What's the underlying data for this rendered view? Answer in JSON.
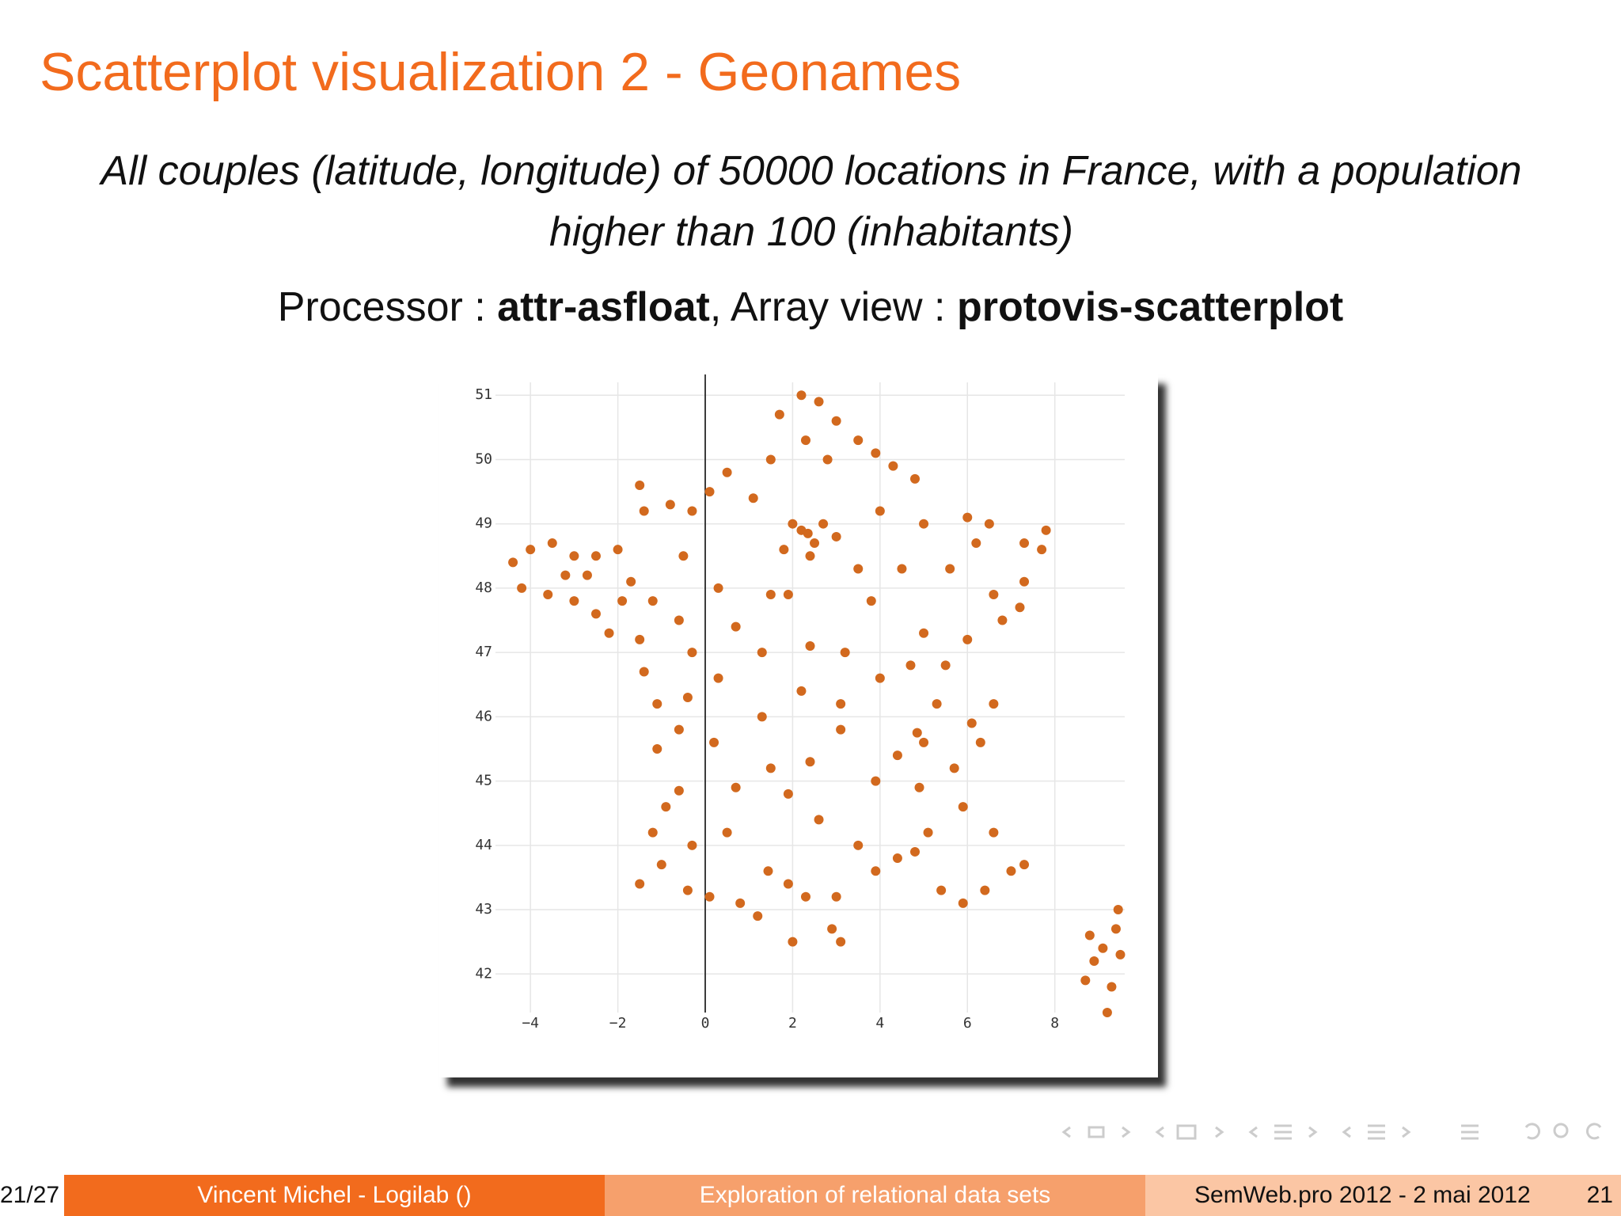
{
  "slide": {
    "title": "Scatterplot visualization 2 - Geonames",
    "subtitle": "All couples (latitude, longitude) of 50000 locations in France, with a population higher than 100 (inhabitants)",
    "processor_label": "Processor : ",
    "processor": "attr-asfloat",
    "view_label": ", Array view : ",
    "view": "protovis-scatterplot",
    "footer": {
      "page_count": "21/27",
      "author": "Vincent Michel - Logilab  ()",
      "talk": "Exploration of relational data sets",
      "event": "SemWeb.pro 2012 - 2 mai 2012",
      "page": "21"
    }
  },
  "chart_data": {
    "type": "scatter",
    "color": "#d2691e",
    "grid": true,
    "xlim": [
      -4.8,
      9.6
    ],
    "ylim": [
      41.4,
      51.2
    ],
    "xticks": [
      {
        "value": -4,
        "label": "−4"
      },
      {
        "value": -2,
        "label": "−2"
      },
      0,
      2,
      4,
      6,
      8
    ],
    "yticks": [
      42,
      43,
      44,
      45,
      46,
      47,
      48,
      49,
      50,
      51
    ],
    "x": [
      -4.4,
      -4.0,
      -3.5,
      -3.0,
      -2.5,
      -2.0,
      -4.2,
      -3.6,
      -3.0,
      -2.5,
      -2.2,
      -1.7,
      -1.5,
      -1.2,
      -1.5,
      -1.4,
      -0.8,
      -0.3,
      0.1,
      0.5,
      1.1,
      1.5,
      1.7,
      2.2,
      2.6,
      3.0,
      3.5,
      3.9,
      2.3,
      2.8,
      4.3,
      4.8,
      2.35,
      2.2,
      2.5,
      2.0,
      2.7,
      2.4,
      3.0,
      1.8,
      4.0,
      5.0,
      6.0,
      6.5,
      7.3,
      7.7,
      7.8,
      7.3,
      7.2,
      6.2,
      5.6,
      6.6,
      4.5,
      3.8,
      5.0,
      6.0,
      6.8,
      5.5,
      1.5,
      0.7,
      1.9,
      1.3,
      2.4,
      3.2,
      0.3,
      1.3,
      2.2,
      3.1,
      3.1,
      2.4,
      1.5,
      0.2,
      3.9,
      2.6,
      -0.6,
      -0.3,
      -1.1,
      -1.4,
      -0.4,
      -0.6,
      -1.1,
      -0.6,
      -0.9,
      -1.2,
      -1.0,
      -1.5,
      -0.4,
      0.1,
      0.5,
      0.7,
      1.44,
      1.9,
      2.3,
      2.9,
      3.0,
      3.9,
      4.4,
      4.8,
      5.4,
      5.9,
      6.4,
      7.0,
      7.3,
      2.0,
      3.1,
      1.2,
      0.8,
      4.85,
      5.0,
      5.7,
      6.1,
      6.6,
      4.4,
      5.3,
      6.3,
      4.9,
      5.9,
      6.6,
      5.1,
      8.7,
      8.9,
      9.1,
      9.4,
      9.5,
      9.3,
      9.2,
      8.8,
      9.45,
      -2.7,
      -3.2,
      -1.9,
      -0.5,
      0.3,
      3.5,
      4.0,
      4.7,
      1.9,
      3.5,
      -0.3
    ],
    "values": [
      48.4,
      48.6,
      48.7,
      48.5,
      48.5,
      48.6,
      48.0,
      47.9,
      47.8,
      47.6,
      47.3,
      48.1,
      47.2,
      47.8,
      49.6,
      49.2,
      49.3,
      49.2,
      49.5,
      49.8,
      49.4,
      50.0,
      50.7,
      51.0,
      50.9,
      50.6,
      50.3,
      50.1,
      50.3,
      50.0,
      49.9,
      49.7,
      48.85,
      48.9,
      48.7,
      49.0,
      49.0,
      48.5,
      48.8,
      48.6,
      49.2,
      49.0,
      49.1,
      49.0,
      48.7,
      48.6,
      48.9,
      48.1,
      47.7,
      48.7,
      48.3,
      47.9,
      48.3,
      47.8,
      47.3,
      47.2,
      47.5,
      46.8,
      47.9,
      47.4,
      47.9,
      47.0,
      47.1,
      47.0,
      46.6,
      46.0,
      46.4,
      46.2,
      45.8,
      45.3,
      45.2,
      45.6,
      45.0,
      44.4,
      47.5,
      47.0,
      46.2,
      46.7,
      46.3,
      45.8,
      45.5,
      44.85,
      44.6,
      44.2,
      43.7,
      43.4,
      43.3,
      43.2,
      44.2,
      44.9,
      43.6,
      43.4,
      43.2,
      42.7,
      43.2,
      43.6,
      43.8,
      43.9,
      43.3,
      43.1,
      43.3,
      43.6,
      43.7,
      42.5,
      42.5,
      42.9,
      43.1,
      45.75,
      45.6,
      45.2,
      45.9,
      46.2,
      45.4,
      46.2,
      45.6,
      44.9,
      44.6,
      44.2,
      44.2,
      41.9,
      42.2,
      42.4,
      42.7,
      42.3,
      41.8,
      41.4,
      42.6,
      43.0,
      48.2,
      48.2,
      47.8,
      48.5,
      48.0,
      48.3,
      46.6,
      46.8,
      44.8,
      44.0,
      44.0
    ]
  }
}
